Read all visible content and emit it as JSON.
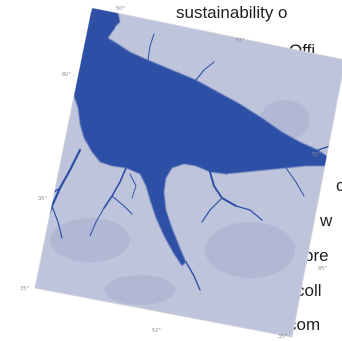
{
  "text_lines": [
    "sustainability o",
    "Offi",
    "c",
    "w",
    "pre",
    "coll",
    "com"
  ],
  "map": {
    "tick_labels": [
      "50°",
      "55°",
      "80°",
      "35°",
      "35°",
      "55°",
      "85°",
      "52°",
      "35°"
    ],
    "colors": {
      "water": "#2c4fa8",
      "land": "#b9bfd8",
      "frame": "#c8c8d2"
    }
  }
}
